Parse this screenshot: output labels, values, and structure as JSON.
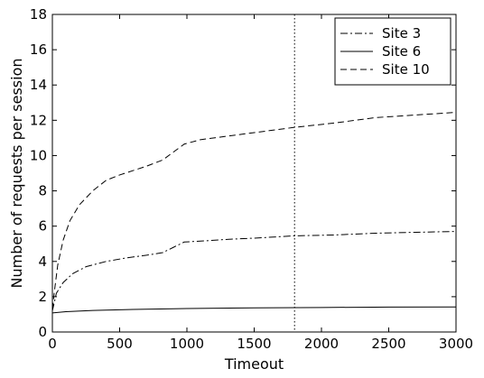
{
  "chart_data": {
    "type": "line",
    "title": "",
    "xlabel": "Timeout",
    "ylabel": "Number of requests per session",
    "xlim": [
      0,
      3000
    ],
    "ylim": [
      0,
      18
    ],
    "xticks": [
      0,
      500,
      1000,
      1500,
      2000,
      2500,
      3000
    ],
    "yticks": [
      0,
      2,
      4,
      6,
      8,
      10,
      12,
      14,
      16,
      18
    ],
    "grid": false,
    "legend_position": "top-right",
    "reference_line_x": 1800,
    "series": [
      {
        "name": "Site 3",
        "style": "dash-dot",
        "color": "#000000",
        "points": [
          [
            0,
            1.2
          ],
          [
            30,
            2.2
          ],
          [
            80,
            2.8
          ],
          [
            150,
            3.3
          ],
          [
            250,
            3.7
          ],
          [
            400,
            4.0
          ],
          [
            550,
            4.2
          ],
          [
            700,
            4.35
          ],
          [
            820,
            4.5
          ],
          [
            900,
            4.8
          ],
          [
            980,
            5.1
          ],
          [
            1100,
            5.15
          ],
          [
            1300,
            5.25
          ],
          [
            1500,
            5.32
          ],
          [
            1800,
            5.45
          ],
          [
            2100,
            5.5
          ],
          [
            2400,
            5.6
          ],
          [
            2700,
            5.65
          ],
          [
            3000,
            5.7
          ]
        ]
      },
      {
        "name": "Site 6",
        "style": "solid",
        "color": "#000000",
        "points": [
          [
            0,
            1.08
          ],
          [
            100,
            1.15
          ],
          [
            300,
            1.22
          ],
          [
            600,
            1.28
          ],
          [
            1000,
            1.33
          ],
          [
            1500,
            1.37
          ],
          [
            2000,
            1.39
          ],
          [
            2500,
            1.41
          ],
          [
            3000,
            1.42
          ]
        ]
      },
      {
        "name": "Site 10",
        "style": "dashed",
        "color": "#000000",
        "points": [
          [
            0,
            1.3
          ],
          [
            15,
            2.3
          ],
          [
            40,
            3.8
          ],
          [
            80,
            5.2
          ],
          [
            130,
            6.3
          ],
          [
            200,
            7.2
          ],
          [
            300,
            8.0
          ],
          [
            400,
            8.6
          ],
          [
            500,
            8.9
          ],
          [
            600,
            9.15
          ],
          [
            700,
            9.4
          ],
          [
            820,
            9.75
          ],
          [
            900,
            10.2
          ],
          [
            980,
            10.65
          ],
          [
            1100,
            10.9
          ],
          [
            1300,
            11.1
          ],
          [
            1500,
            11.3
          ],
          [
            1800,
            11.6
          ],
          [
            2100,
            11.85
          ],
          [
            2400,
            12.15
          ],
          [
            2700,
            12.3
          ],
          [
            3000,
            12.45
          ]
        ]
      }
    ]
  }
}
